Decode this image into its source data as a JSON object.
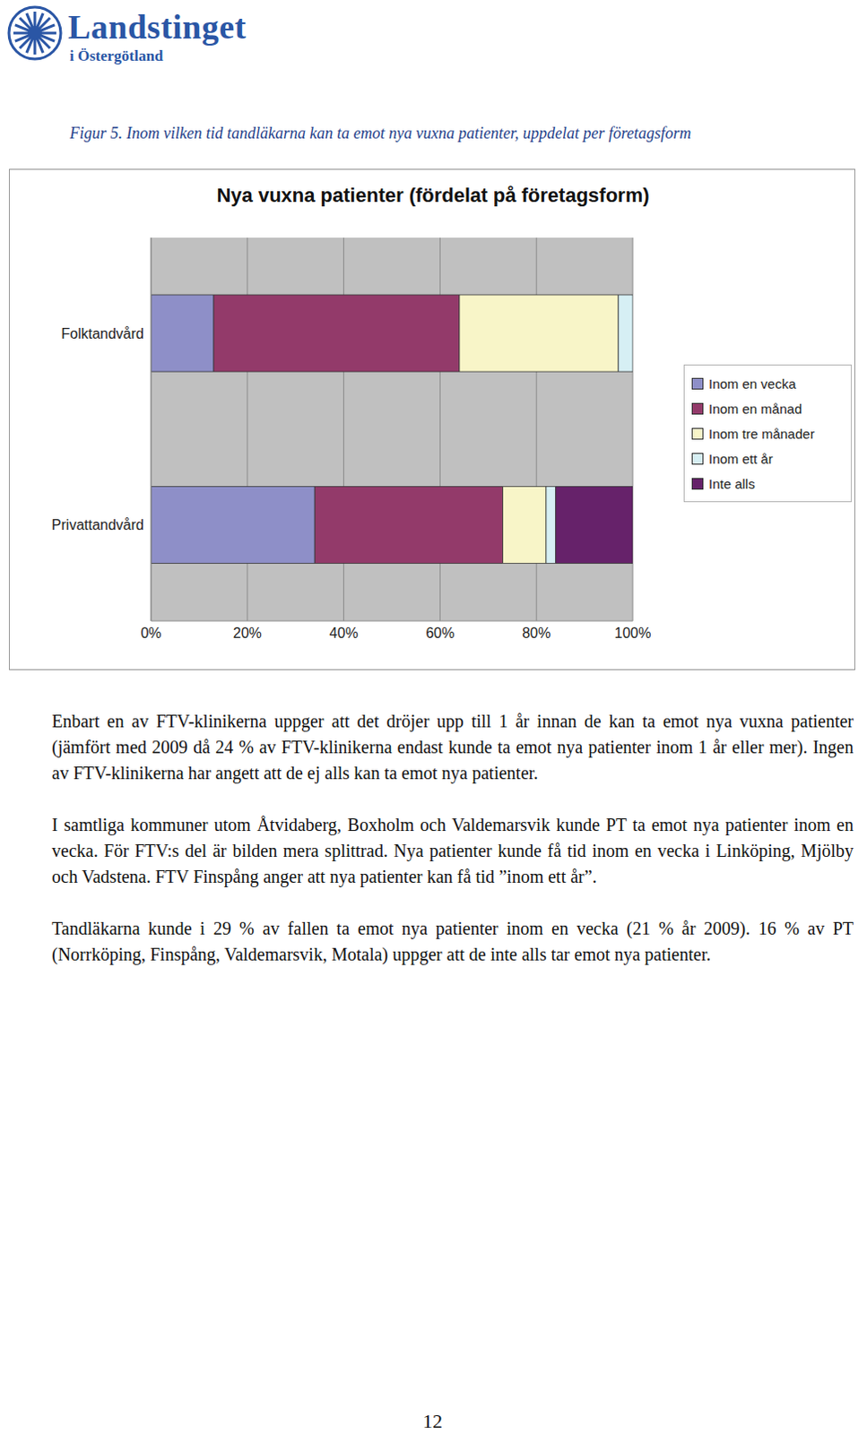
{
  "header": {
    "title": "Landstinget",
    "subtitle": "i Östergötland"
  },
  "caption": "Figur 5. Inom vilken tid tandläkarna kan ta emot nya vuxna patienter, uppdelat per företagsform",
  "chart_data": {
    "type": "bar",
    "title": "Nya vuxna patienter (fördelat på företagsform)",
    "orientation": "horizontal",
    "stacked": true,
    "grid": true,
    "legend": "right",
    "categories": [
      "Folktandvård",
      "Privattandvård"
    ],
    "series": [
      {
        "name": "Inom en vecka",
        "color": "#8E8FC8",
        "values": [
          13,
          34
        ]
      },
      {
        "name": "Inom en månad",
        "color": "#933A6A",
        "values": [
          51,
          39
        ]
      },
      {
        "name": "Inom tre månader",
        "color": "#F8F5C8",
        "values": [
          33,
          9
        ]
      },
      {
        "name": "Inom ett år",
        "color": "#D6EFF4",
        "values": [
          3,
          2
        ]
      },
      {
        "name": "Inte alls",
        "color": "#66226A",
        "values": [
          0,
          16
        ]
      }
    ],
    "xlim": [
      0,
      100
    ],
    "xticks": [
      {
        "value": 0,
        "label": "0%"
      },
      {
        "value": 20,
        "label": "20%"
      },
      {
        "value": 40,
        "label": "40%"
      },
      {
        "value": 60,
        "label": "60%"
      },
      {
        "value": 80,
        "label": "80%"
      },
      {
        "value": 100,
        "label": "100%"
      }
    ]
  },
  "paragraphs": [
    "Enbart en av FTV-klinikerna uppger att det dröjer upp till 1 år innan de kan ta emot nya vuxna patienter (jämfört med 2009 då 24 % av FTV-klinikerna endast kunde ta emot nya patienter inom 1 år eller mer). Ingen av FTV-klinikerna har angett att de ej alls kan ta emot nya patienter.",
    "I samtliga kommuner utom Åtvidaberg, Boxholm och Valdemarsvik kunde PT ta emot nya patienter inom en vecka. För FTV:s del är bilden mera splittrad. Nya patienter kunde få tid inom en vecka i Linköping, Mjölby och Vadstena. FTV Finspång anger att nya patienter kan få tid ”inom ett år”.",
    "Tandläkarna kunde i 29 % av fallen ta emot nya patienter inom en vecka (21 % år 2009). 16 % av PT (Norrköping, Finspång, Valdemarsvik, Motala) uppger att de inte alls tar emot nya patienter."
  ],
  "page_number": "12"
}
